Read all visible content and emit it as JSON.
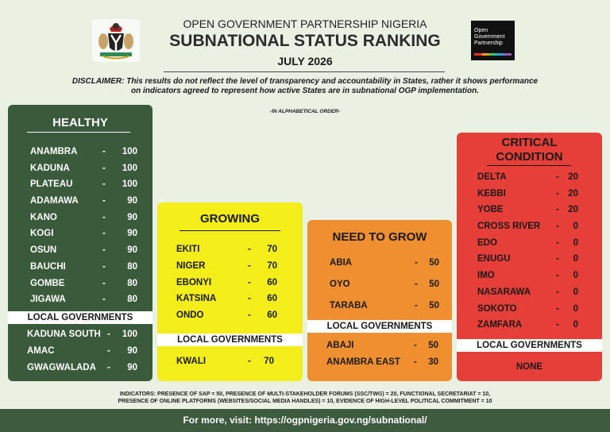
{
  "header": {
    "org": "OPEN GOVERNMENT PARTNERSHIP NIGERIA",
    "title": "SUBNATIONAL STATUS RANKING",
    "date": "JULY 2026",
    "disclaimer": "DISCLAIMER: This results do not reflect the level of transparency and accountability in States, rather it shows performance on indicators agreed to represent how active States are in subnational OGP implementation.",
    "order_note": "-IN ALPHABETICAL ORDER-"
  },
  "logo": {
    "line1": "Open",
    "line2": "Government",
    "line3": "Partnership"
  },
  "healthy": {
    "title": "HEALTHY",
    "states": [
      {
        "name": "ANAMBRA",
        "dash": "-",
        "score": "100"
      },
      {
        "name": "KADUNA",
        "dash": "-",
        "score": "100"
      },
      {
        "name": "PLATEAU",
        "dash": "-",
        "score": "100"
      },
      {
        "name": "ADAMAWA",
        "dash": "-",
        "score": "90"
      },
      {
        "name": "KANO",
        "dash": "-",
        "score": "90"
      },
      {
        "name": "KOGI",
        "dash": "-",
        "score": "90"
      },
      {
        "name": "OSUN",
        "dash": "-",
        "score": "90"
      },
      {
        "name": "BAUCHI",
        "dash": "-",
        "score": "80"
      },
      {
        "name": "GOMBE",
        "dash": "-",
        "score": "80"
      },
      {
        "name": "JIGAWA",
        "dash": "-",
        "score": "80"
      }
    ],
    "local_label": "LOCAL GOVERNMENTS",
    "locals": [
      {
        "name": "KADUNA SOUTH",
        "dash": "-",
        "score": "100"
      },
      {
        "name": "AMAC",
        "dash": "-",
        "score": "90"
      },
      {
        "name": "GWAGWALADA",
        "dash": "-",
        "score": "90"
      }
    ]
  },
  "growing": {
    "title": "GROWING",
    "states": [
      {
        "name": "EKITI",
        "dash": "-",
        "score": "70"
      },
      {
        "name": "NIGER",
        "dash": "-",
        "score": "70"
      },
      {
        "name": "EBONYI",
        "dash": "-",
        "score": "60"
      },
      {
        "name": "KATSINA",
        "dash": "-",
        "score": "60"
      },
      {
        "name": "ONDO",
        "dash": "-",
        "score": "60"
      }
    ],
    "local_label": "LOCAL GOVERNMENTS",
    "locals": [
      {
        "name": "KWALI",
        "dash": "-",
        "score": "70"
      }
    ]
  },
  "need_to_grow": {
    "title": "NEED TO GROW",
    "states": [
      {
        "name": "ABIA",
        "dash": "-",
        "score": "50"
      },
      {
        "name": "OYO",
        "dash": "-",
        "score": "50"
      },
      {
        "name": "TARABA",
        "dash": "-",
        "score": "50"
      }
    ],
    "local_label": "LOCAL GOVERNMENTS",
    "locals": [
      {
        "name": "ABAJI",
        "dash": "-",
        "score": "50"
      },
      {
        "name": "ANAMBRA EAST",
        "dash": "-",
        "score": "30"
      }
    ]
  },
  "critical": {
    "title_line1": "CRITICAL",
    "title_line2": "CONDITION",
    "states": [
      {
        "name": "DELTA",
        "dash": "-",
        "score": "20"
      },
      {
        "name": "KEBBI",
        "dash": "-",
        "score": "20"
      },
      {
        "name": "YOBE",
        "dash": "-",
        "score": "20"
      },
      {
        "name": "CROSS RIVER",
        "dash": "-",
        "score": "0"
      },
      {
        "name": "EDO",
        "dash": "-",
        "score": "0"
      },
      {
        "name": "ENUGU",
        "dash": "-",
        "score": "0"
      },
      {
        "name": "IMO",
        "dash": "-",
        "score": "0"
      },
      {
        "name": "NASARAWA",
        "dash": "-",
        "score": "0"
      },
      {
        "name": "SOKOTO",
        "dash": "-",
        "score": "0"
      },
      {
        "name": "ZAMFARA",
        "dash": "-",
        "score": "0"
      }
    ],
    "local_label": "LOCAL GOVERNMENTS",
    "local_none": "NONE"
  },
  "indicators": {
    "line1": "INDICATORS: PRESENCE OF SAP = 50, PRESENCE OF MULTI-STAKEHOLDER FORUMS (SSC/TWG) = 20, FUNCTIONAL SECRETARIAT = 10,",
    "line2": "PRESENCE OF ONLINE PLATFORMS (WEBSITES/SOCIAL MEDIA HANDLES) = 10, EVIDENCE OF HIGH-LEVEL POLITICAL COMMITMENT = 10"
  },
  "footer": {
    "text": "For more, visit: https://ogpnigeria.gov.ng/subnational/"
  },
  "colors": {
    "healthy": "#3a5a3c",
    "growing": "#f3ed1a",
    "need_to_grow": "#f08f2f",
    "critical": "#e63f3a",
    "background": "#e8f1e2",
    "footer": "#3f5b3f"
  }
}
